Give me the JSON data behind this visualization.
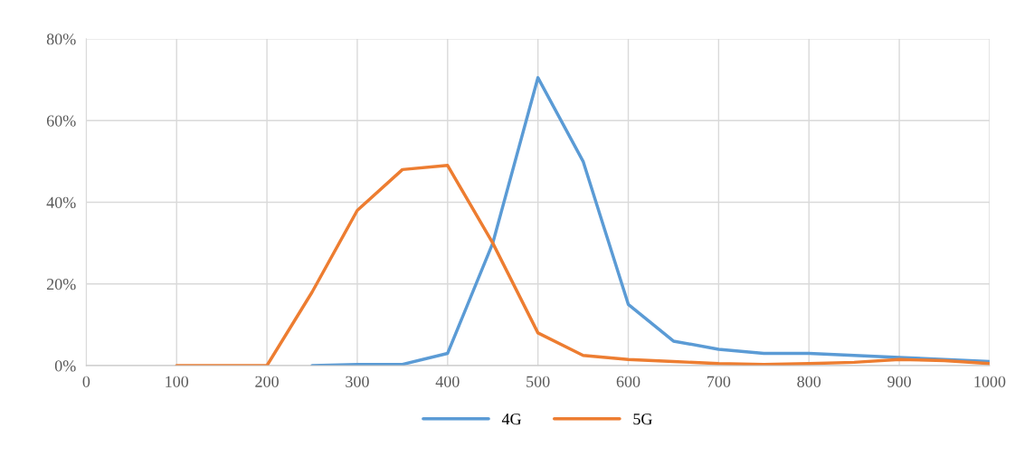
{
  "chart_data": {
    "type": "line",
    "x": [
      100,
      150,
      200,
      250,
      300,
      350,
      400,
      450,
      500,
      550,
      600,
      650,
      700,
      750,
      800,
      850,
      900,
      950,
      1000
    ],
    "series": [
      {
        "name": "4G",
        "color": "#5b9bd5",
        "values": [
          null,
          null,
          null,
          0,
          0.3,
          0.3,
          3,
          30,
          70.5,
          50,
          15,
          6,
          4,
          3,
          3,
          2.5,
          2,
          1.5,
          1
        ]
      },
      {
        "name": "5G",
        "color": "#ed7d31",
        "values": [
          0,
          0,
          0,
          18,
          38,
          48,
          49,
          30,
          8,
          2.5,
          1.5,
          1,
          0.5,
          0.3,
          0.5,
          0.8,
          1.5,
          1.2,
          0.5
        ]
      }
    ],
    "xlim": [
      0,
      1000
    ],
    "xticks": [
      0,
      100,
      200,
      300,
      400,
      500,
      600,
      700,
      800,
      900,
      1000
    ],
    "ylim": [
      0,
      80
    ],
    "yticks": [
      {
        "value": 0,
        "label": "0%"
      },
      {
        "value": 20,
        "label": "20%"
      },
      {
        "value": 40,
        "label": "40%"
      },
      {
        "value": 60,
        "label": "60%"
      },
      {
        "value": 80,
        "label": "80%"
      }
    ],
    "grid": true,
    "legend": "bottom",
    "marker": "none",
    "line_style": "solid"
  }
}
